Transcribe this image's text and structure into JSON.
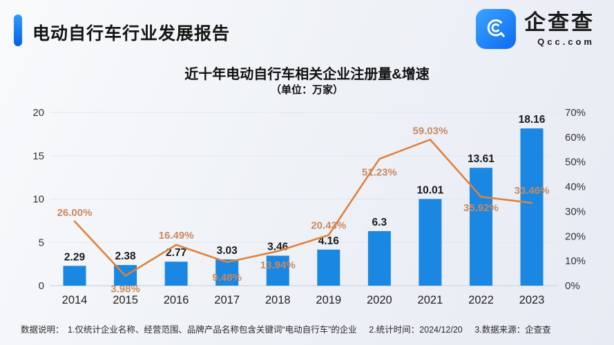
{
  "header": {
    "title": "电动自行车行业发展报告"
  },
  "logo": {
    "name": "企查查",
    "domain": "Qcc.com"
  },
  "chart_data": {
    "type": "bar+line",
    "title": "近十年电动自行车相关企业注册量&增速",
    "subtitle": "（单位：万家）",
    "categories": [
      "2014",
      "2015",
      "2016",
      "2017",
      "2018",
      "2019",
      "2020",
      "2021",
      "2022",
      "2023"
    ],
    "series": [
      {
        "name": "注册量（万家）",
        "type": "bar",
        "axis": "left",
        "values": [
          2.29,
          2.38,
          2.77,
          3.03,
          3.46,
          4.16,
          6.3,
          10.01,
          13.61,
          18.16
        ],
        "value_labels": [
          "2.29",
          "2.38",
          "2.77",
          "3.03",
          "3.46",
          "4.16",
          "6.3",
          "10.01",
          "13.61",
          "18.16"
        ],
        "color": "#1a87e2"
      },
      {
        "name": "增速",
        "type": "line",
        "axis": "right",
        "values": [
          26.0,
          3.98,
          16.49,
          9.48,
          13.94,
          20.43,
          51.23,
          59.03,
          35.92,
          33.46
        ],
        "value_labels": [
          "26.00%",
          "3.98%",
          "16.49%",
          "9.48%",
          "13.94%",
          "20.43%",
          "51.23%",
          "59.03%",
          "35.92%",
          "33.46%"
        ],
        "color": "#e0813c",
        "label_color": "#c9895f"
      }
    ],
    "left_axis": {
      "min": 0,
      "max": 20,
      "ticks": [
        0,
        5,
        10,
        15,
        20
      ]
    },
    "right_axis": {
      "min": 0,
      "max": 70,
      "ticks": [
        0,
        10,
        20,
        30,
        40,
        50,
        60,
        70
      ],
      "suffix": "%"
    },
    "layout_hints": {
      "grid": "horizontal-on-left-ticks",
      "legend": "none",
      "line_label_dy": [
        -8,
        16,
        -9,
        19,
        17,
        -9,
        16,
        -8,
        13,
        -13
      ],
      "bar_label_color": "#1a1a1a",
      "axis_label_color": "#333333",
      "grid_color": "#e2e6ed",
      "baseline_color": "#d4d9e1"
    }
  },
  "footer": {
    "label": "数据说明：",
    "items": [
      "1.仅统计企业名称、经营范围、品牌产品名称包含关键词“电动自行车”的企业",
      "2.统计时间：2024/12/20",
      "3.数据来源：企查查"
    ]
  }
}
